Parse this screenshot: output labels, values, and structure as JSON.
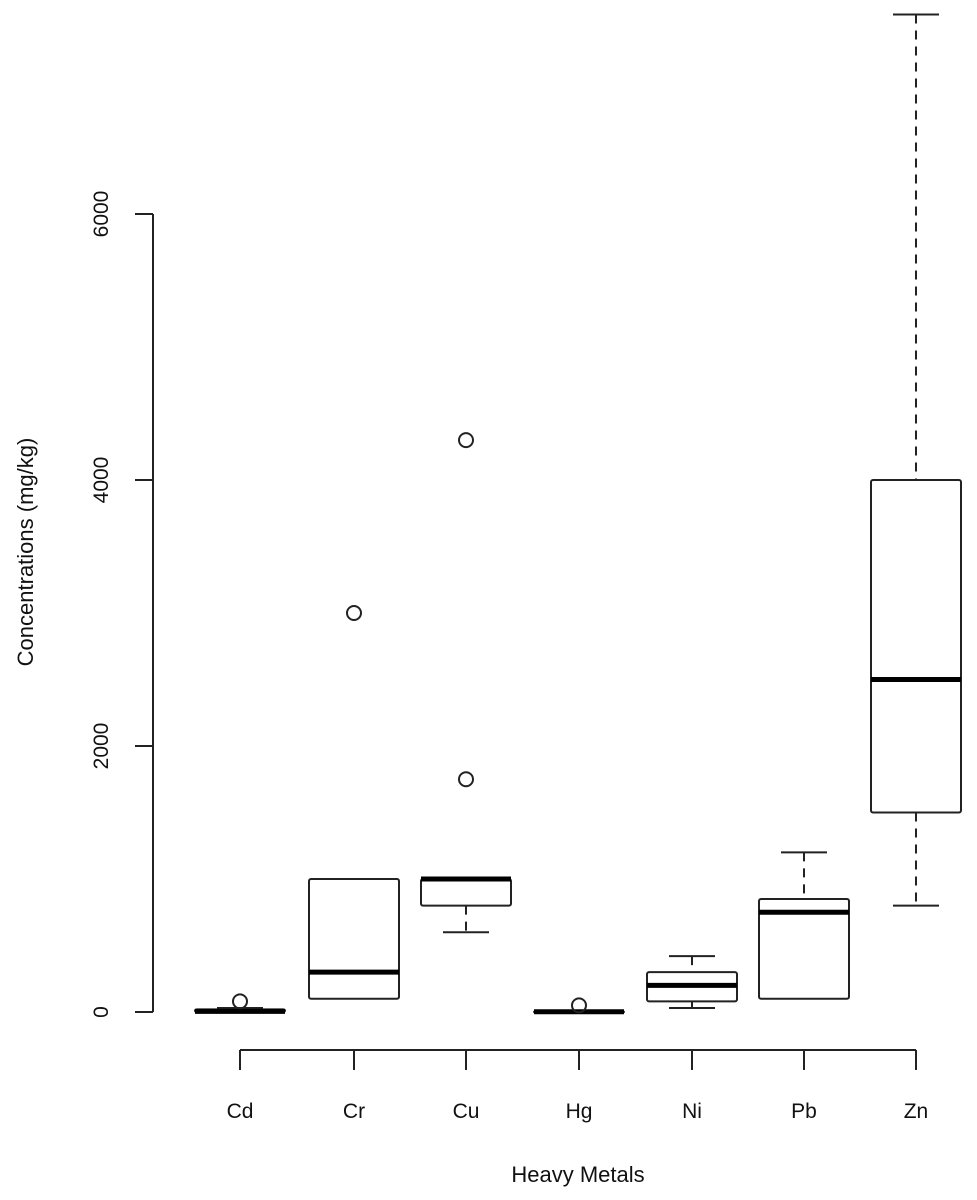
{
  "chart_data": {
    "type": "boxplot",
    "title": "",
    "xlabel": "Heavy Metals",
    "ylabel": "Concentrations (mg/kg)",
    "ylim": [
      0,
      7500
    ],
    "yticks": [
      0,
      2000,
      4000,
      6000
    ],
    "ytick_labels": [
      "0",
      "2000",
      "4000",
      "6000"
    ],
    "grid": false,
    "legend": null,
    "categories": [
      "Cd",
      "Cr",
      "Cu",
      "Hg",
      "Ni",
      "Pb",
      "Zn"
    ],
    "series": [
      {
        "name": "Cd",
        "whisker_low": 0,
        "q1": 0,
        "median": 5,
        "q3": 20,
        "whisker_high": 30,
        "outliers": [
          80
        ]
      },
      {
        "name": "Cr",
        "whisker_low": 100,
        "q1": 100,
        "median": 300,
        "q3": 1000,
        "whisker_high": 1000,
        "outliers": [
          3000
        ]
      },
      {
        "name": "Cu",
        "whisker_low": 600,
        "q1": 800,
        "median": 1000,
        "q3": 1000,
        "whisker_high": 1000,
        "outliers": [
          1750,
          4300
        ]
      },
      {
        "name": "Hg",
        "whisker_low": 0,
        "q1": 0,
        "median": 2,
        "q3": 5,
        "whisker_high": 5,
        "outliers": [
          50
        ]
      },
      {
        "name": "Ni",
        "whisker_low": 30,
        "q1": 80,
        "median": 200,
        "q3": 300,
        "whisker_high": 420,
        "outliers": []
      },
      {
        "name": "Pb",
        "whisker_low": 100,
        "q1": 100,
        "median": 750,
        "q3": 850,
        "whisker_high": 1200,
        "outliers": []
      },
      {
        "name": "Zn",
        "whisker_low": 800,
        "q1": 1500,
        "median": 2500,
        "q3": 4000,
        "whisker_high": 7500,
        "outliers": []
      }
    ]
  }
}
